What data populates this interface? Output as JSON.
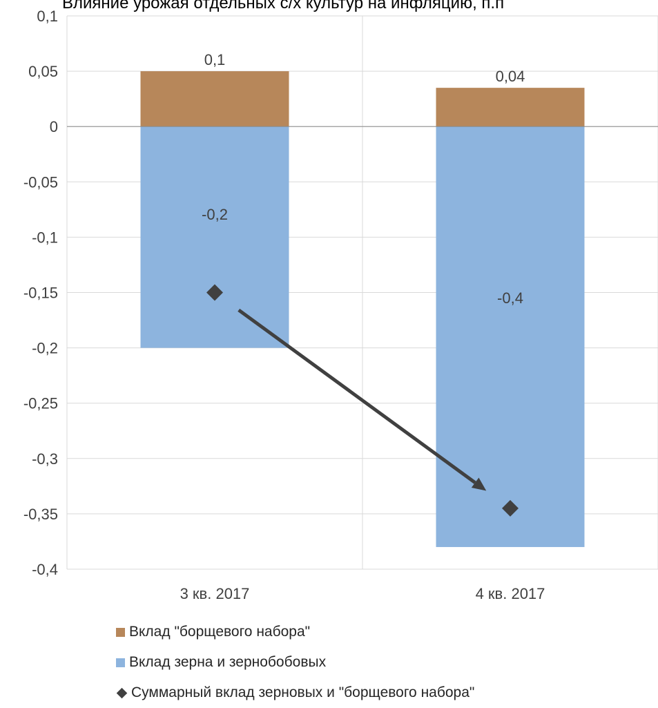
{
  "chart_data": {
    "type": "bar",
    "title": "Влияние урожая отдельных с/х культур на инфляцию, п.п",
    "categories": [
      "3 кв. 2017",
      "4 кв. 2017"
    ],
    "series": [
      {
        "name": "Вклад \"борщевого набора\"",
        "kind": "bar",
        "color": "#b7875a",
        "values": [
          0.05,
          0.035
        ],
        "labels": [
          "0,1",
          "0,04"
        ]
      },
      {
        "name": "Вклад зерна и зернобобовых",
        "kind": "bar",
        "color": "#8db4de",
        "values": [
          -0.2,
          -0.38
        ],
        "labels": [
          "-0,2",
          "-0,4"
        ]
      },
      {
        "name": "Суммарный вклад зерновых и \"борщевого набора\"",
        "kind": "marker",
        "color": "#404040",
        "values": [
          -0.15,
          -0.345
        ]
      }
    ],
    "ylim": [
      -0.4,
      0.1
    ],
    "yticks": [
      "0,1",
      "0,05",
      "0",
      "-0,05",
      "-0,1",
      "-0,15",
      "-0,2",
      "-0,25",
      "-0,3",
      "-0,35",
      "-0,4"
    ],
    "ytick_values": [
      0.1,
      0.05,
      0,
      -0.05,
      -0.1,
      -0.15,
      -0.2,
      -0.25,
      -0.3,
      -0.35,
      -0.4
    ],
    "grid": true,
    "legend_position": "bottom",
    "annotation": {
      "type": "arrow",
      "from_category": 0,
      "to_category": 1,
      "color": "#404040"
    }
  }
}
